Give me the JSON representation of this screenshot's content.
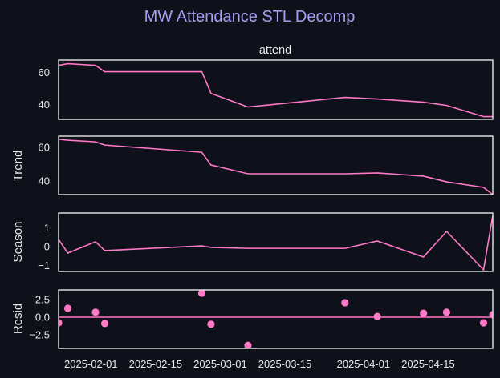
{
  "chart_data": {
    "type": "line",
    "title": "MW Attendance STL Decomp",
    "colors": {
      "background": "#0f111a",
      "title": "#a89cf2",
      "series": "#ff79c6",
      "axes": "#e6e6e6",
      "text": "#eaeaea"
    },
    "dates": [
      "2025-01-25",
      "2025-01-27",
      "2025-02-02",
      "2025-02-04",
      "2025-02-25",
      "2025-02-27",
      "2025-03-07",
      "2025-03-28",
      "2025-04-04",
      "2025-04-14",
      "2025-04-19",
      "2025-04-27",
      "2025-04-29"
    ],
    "xticks": [
      "2025-02-01",
      "2025-02-15",
      "2025-03-01",
      "2025-03-15",
      "2025-04-01",
      "2025-04-15"
    ],
    "grid": false,
    "panels": [
      {
        "name": "attend",
        "title": "attend",
        "ylabel": "",
        "kind": "line",
        "values": [
          64.5,
          65.5,
          64.5,
          60.5,
          60.5,
          47,
          38.5,
          44.5,
          43.5,
          41.5,
          39.5,
          32.5,
          32.5
        ],
        "ylim": [
          30.8,
          67.8
        ],
        "yticks": [
          40,
          60
        ],
        "ytick_labels": [
          "40",
          "60"
        ]
      },
      {
        "name": "trend",
        "title": "",
        "ylabel": "Trend",
        "kind": "line",
        "values": [
          64.8,
          64.3,
          63.3,
          61.4,
          57.1,
          49.5,
          44.3,
          44.3,
          44.8,
          42.9,
          39.5,
          36.2,
          31.9
        ],
        "ylim": [
          31.9,
          66.7
        ],
        "yticks": [
          40,
          60
        ],
        "ytick_labels": [
          "40",
          "60"
        ]
      },
      {
        "name": "season",
        "title": "",
        "ylabel": "Season",
        "kind": "line",
        "values": [
          0.38,
          -0.34,
          0.26,
          -0.21,
          0.04,
          -0.04,
          -0.09,
          -0.09,
          0.3,
          -0.55,
          0.81,
          -1.23,
          1.66
        ],
        "ylim": [
          -1.32,
          1.79
        ],
        "yticks": [
          -1,
          0,
          1
        ],
        "ytick_labels": [
          "−1",
          "0",
          "1"
        ]
      },
      {
        "name": "resid",
        "title": "",
        "ylabel": "Resid",
        "kind": "scatter",
        "values": [
          -0.8,
          1.25,
          0.7,
          -0.9,
          3.4,
          -1.0,
          -4.0,
          2.05,
          0.1,
          0.55,
          0.7,
          -0.8,
          0.35
        ],
        "ylim": [
          -4.43,
          3.86
        ],
        "yticks": [
          -2.5,
          0,
          2.5
        ],
        "ytick_labels": [
          "−2.5",
          "0.0",
          "2.5"
        ],
        "hline": 0
      }
    ]
  }
}
